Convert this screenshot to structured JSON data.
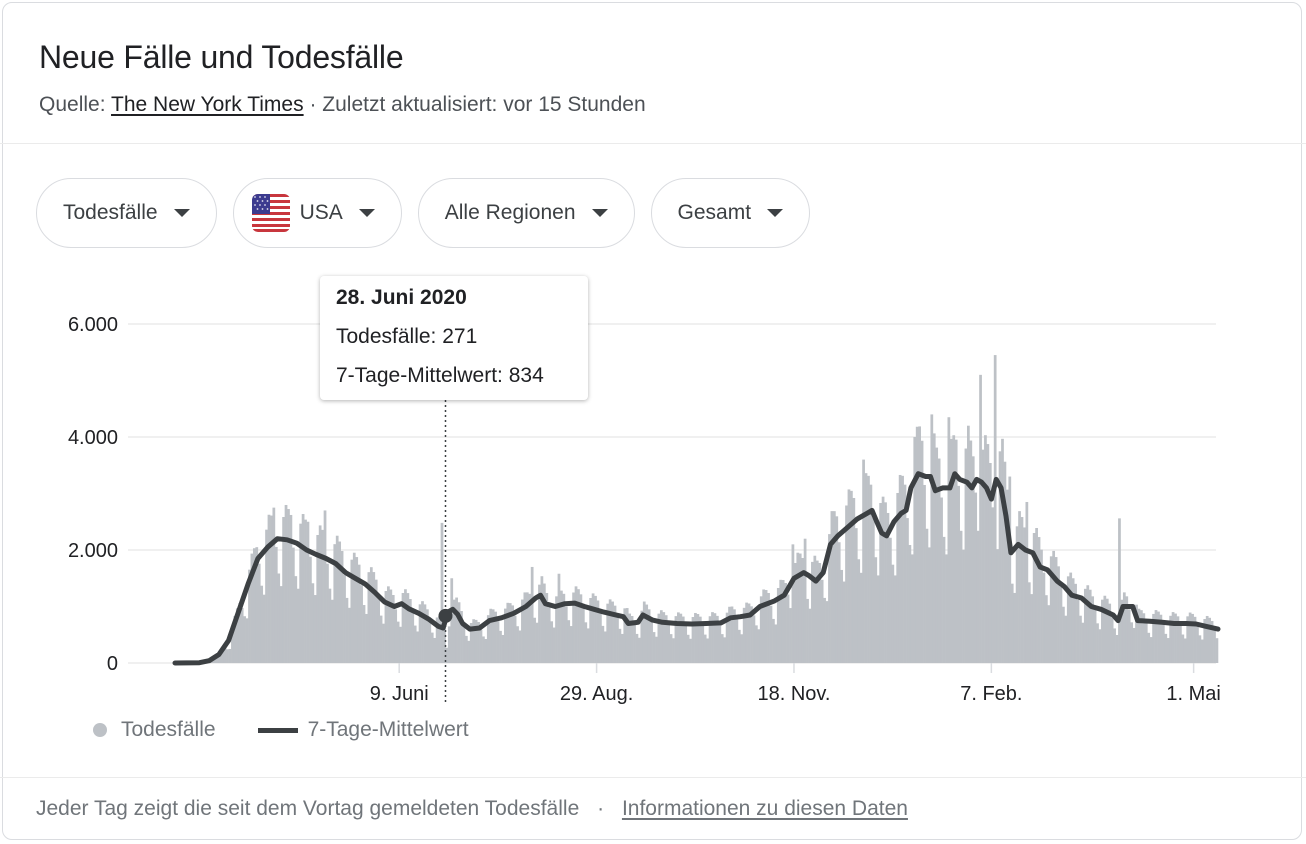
{
  "header": {
    "title": "Neue Fälle und Todesfälle",
    "source_prefix": "Quelle:",
    "source_link": "The New York Times",
    "separator": "·",
    "updated": "Zuletzt aktualisiert: vor 15 Stunden"
  },
  "filters": [
    {
      "label": "Todesfälle",
      "icon": "caret-down-icon"
    },
    {
      "label": "USA",
      "icon": "us-flag-icon"
    },
    {
      "label": "Alle Regionen",
      "icon": "caret-down-icon"
    },
    {
      "label": "Gesamt",
      "icon": "caret-down-icon"
    }
  ],
  "tooltip": {
    "date": "28. Juni 2020",
    "deaths": "Todesfälle: 271",
    "average": "7-Tage-Mittelwert: 834"
  },
  "legend": {
    "bars": "Todesfälle",
    "line": "7-Tage-Mittelwert"
  },
  "footer": {
    "note": "Jeder Tag zeigt die seit dem Vortag gemeldeten Todesfälle",
    "separator": "·",
    "link": "Informationen zu diesen Daten"
  },
  "colors": {
    "bars": "#bdc1c6",
    "line": "#3c4043",
    "grid": "#ebebeb"
  },
  "chart_data": {
    "type": "bar",
    "title": "Neue Fälle und Todesfälle",
    "xlabel": "",
    "ylabel": "",
    "ylim": [
      0,
      6000
    ],
    "yticks": [
      {
        "value": 0,
        "label": "0"
      },
      {
        "value": 2000,
        "label": "2.000"
      },
      {
        "value": 4000,
        "label": "4.000"
      },
      {
        "value": 6000,
        "label": "6.000"
      }
    ],
    "x_start_date": "2020-03-09",
    "x_days": 428,
    "xticks": [
      {
        "day": 92,
        "label": "9. Juni"
      },
      {
        "day": 173,
        "label": "29. Aug."
      },
      {
        "day": 254,
        "label": "18. Nov."
      },
      {
        "day": 335,
        "label": "7. Feb."
      },
      {
        "day": 418,
        "label": "1. Mai"
      }
    ],
    "grid": true,
    "legend_position": "bottom-left",
    "highlight": {
      "day": 111,
      "label": "28. Juni 2020",
      "deaths": 271,
      "average": 834
    },
    "series": [
      {
        "name": "7-Tage-Mittelwert",
        "type": "line",
        "points": [
          [
            0,
            0
          ],
          [
            10,
            5
          ],
          [
            14,
            40
          ],
          [
            18,
            150
          ],
          [
            22,
            400
          ],
          [
            26,
            900
          ],
          [
            30,
            1400
          ],
          [
            34,
            1850
          ],
          [
            38,
            2050
          ],
          [
            42,
            2200
          ],
          [
            46,
            2180
          ],
          [
            50,
            2120
          ],
          [
            54,
            2000
          ],
          [
            58,
            1920
          ],
          [
            62,
            1850
          ],
          [
            66,
            1760
          ],
          [
            70,
            1600
          ],
          [
            74,
            1500
          ],
          [
            78,
            1400
          ],
          [
            82,
            1250
          ],
          [
            86,
            1080
          ],
          [
            90,
            1000
          ],
          [
            93,
            1050
          ],
          [
            96,
            960
          ],
          [
            100,
            880
          ],
          [
            104,
            780
          ],
          [
            108,
            650
          ],
          [
            110,
            620
          ],
          [
            112,
            900
          ],
          [
            114,
            950
          ],
          [
            116,
            860
          ],
          [
            118,
            700
          ],
          [
            121,
            600
          ],
          [
            125,
            620
          ],
          [
            129,
            750
          ],
          [
            134,
            800
          ],
          [
            139,
            880
          ],
          [
            144,
            1000
          ],
          [
            148,
            1150
          ],
          [
            150,
            1200
          ],
          [
            152,
            1050
          ],
          [
            156,
            1000
          ],
          [
            160,
            1050
          ],
          [
            164,
            1060
          ],
          [
            168,
            1000
          ],
          [
            172,
            950
          ],
          [
            176,
            900
          ],
          [
            180,
            860
          ],
          [
            184,
            820
          ],
          [
            186,
            700
          ],
          [
            190,
            720
          ],
          [
            192,
            850
          ],
          [
            196,
            760
          ],
          [
            200,
            720
          ],
          [
            206,
            700
          ],
          [
            212,
            690
          ],
          [
            218,
            700
          ],
          [
            224,
            710
          ],
          [
            228,
            800
          ],
          [
            232,
            820
          ],
          [
            236,
            850
          ],
          [
            240,
            1000
          ],
          [
            246,
            1100
          ],
          [
            250,
            1200
          ],
          [
            254,
            1500
          ],
          [
            258,
            1600
          ],
          [
            260,
            1550
          ],
          [
            263,
            1450
          ],
          [
            266,
            1600
          ],
          [
            269,
            2100
          ],
          [
            272,
            2250
          ],
          [
            276,
            2400
          ],
          [
            280,
            2550
          ],
          [
            284,
            2650
          ],
          [
            286,
            2700
          ],
          [
            288,
            2500
          ],
          [
            290,
            2300
          ],
          [
            292,
            2250
          ],
          [
            295,
            2500
          ],
          [
            298,
            2650
          ],
          [
            300,
            2700
          ],
          [
            302,
            3100
          ],
          [
            305,
            3350
          ],
          [
            308,
            3300
          ],
          [
            310,
            3300
          ],
          [
            312,
            3050
          ],
          [
            315,
            3100
          ],
          [
            318,
            3100
          ],
          [
            320,
            3350
          ],
          [
            322,
            3250
          ],
          [
            325,
            3200
          ],
          [
            327,
            3100
          ],
          [
            329,
            3250
          ],
          [
            331,
            3200
          ],
          [
            333,
            3100
          ],
          [
            335,
            2900
          ],
          [
            337,
            3250
          ],
          [
            339,
            3100
          ],
          [
            341,
            2600
          ],
          [
            343,
            1950
          ],
          [
            346,
            2100
          ],
          [
            349,
            2000
          ],
          [
            352,
            1950
          ],
          [
            355,
            1700
          ],
          [
            358,
            1650
          ],
          [
            360,
            1550
          ],
          [
            362,
            1450
          ],
          [
            365,
            1350
          ],
          [
            368,
            1200
          ],
          [
            372,
            1150
          ],
          [
            376,
            1000
          ],
          [
            380,
            950
          ],
          [
            385,
            850
          ],
          [
            387,
            750
          ],
          [
            389,
            1000
          ],
          [
            393,
            1000
          ],
          [
            395,
            750
          ],
          [
            400,
            740
          ],
          [
            405,
            720
          ],
          [
            410,
            700
          ],
          [
            415,
            700
          ],
          [
            419,
            690
          ],
          [
            423,
            650
          ],
          [
            428,
            600
          ]
        ]
      },
      {
        "name": "Todesfälle",
        "type": "bar",
        "weekly_pattern": [
          0.72,
          0.62,
          1.18,
          1.28,
          1.25,
          1.18,
          0.95
        ],
        "spikes": [
          {
            "day": 40,
            "value": 2750
          },
          {
            "day": 47,
            "value": 2620
          },
          {
            "day": 54,
            "value": 2500
          },
          {
            "day": 61,
            "value": 2700
          },
          {
            "day": 109,
            "value": 2480
          },
          {
            "day": 113,
            "value": 1500
          },
          {
            "day": 146,
            "value": 1700
          },
          {
            "day": 157,
            "value": 1580
          },
          {
            "day": 253,
            "value": 2100
          },
          {
            "day": 258,
            "value": 2200
          },
          {
            "day": 282,
            "value": 3600
          },
          {
            "day": 303,
            "value": 4000
          },
          {
            "day": 310,
            "value": 4400
          },
          {
            "day": 317,
            "value": 4350
          },
          {
            "day": 325,
            "value": 4200
          },
          {
            "day": 330,
            "value": 5100
          },
          {
            "day": 336,
            "value": 5450
          },
          {
            "day": 342,
            "value": 3300
          },
          {
            "day": 349,
            "value": 2850
          },
          {
            "day": 387,
            "value": 2560
          }
        ]
      }
    ]
  }
}
